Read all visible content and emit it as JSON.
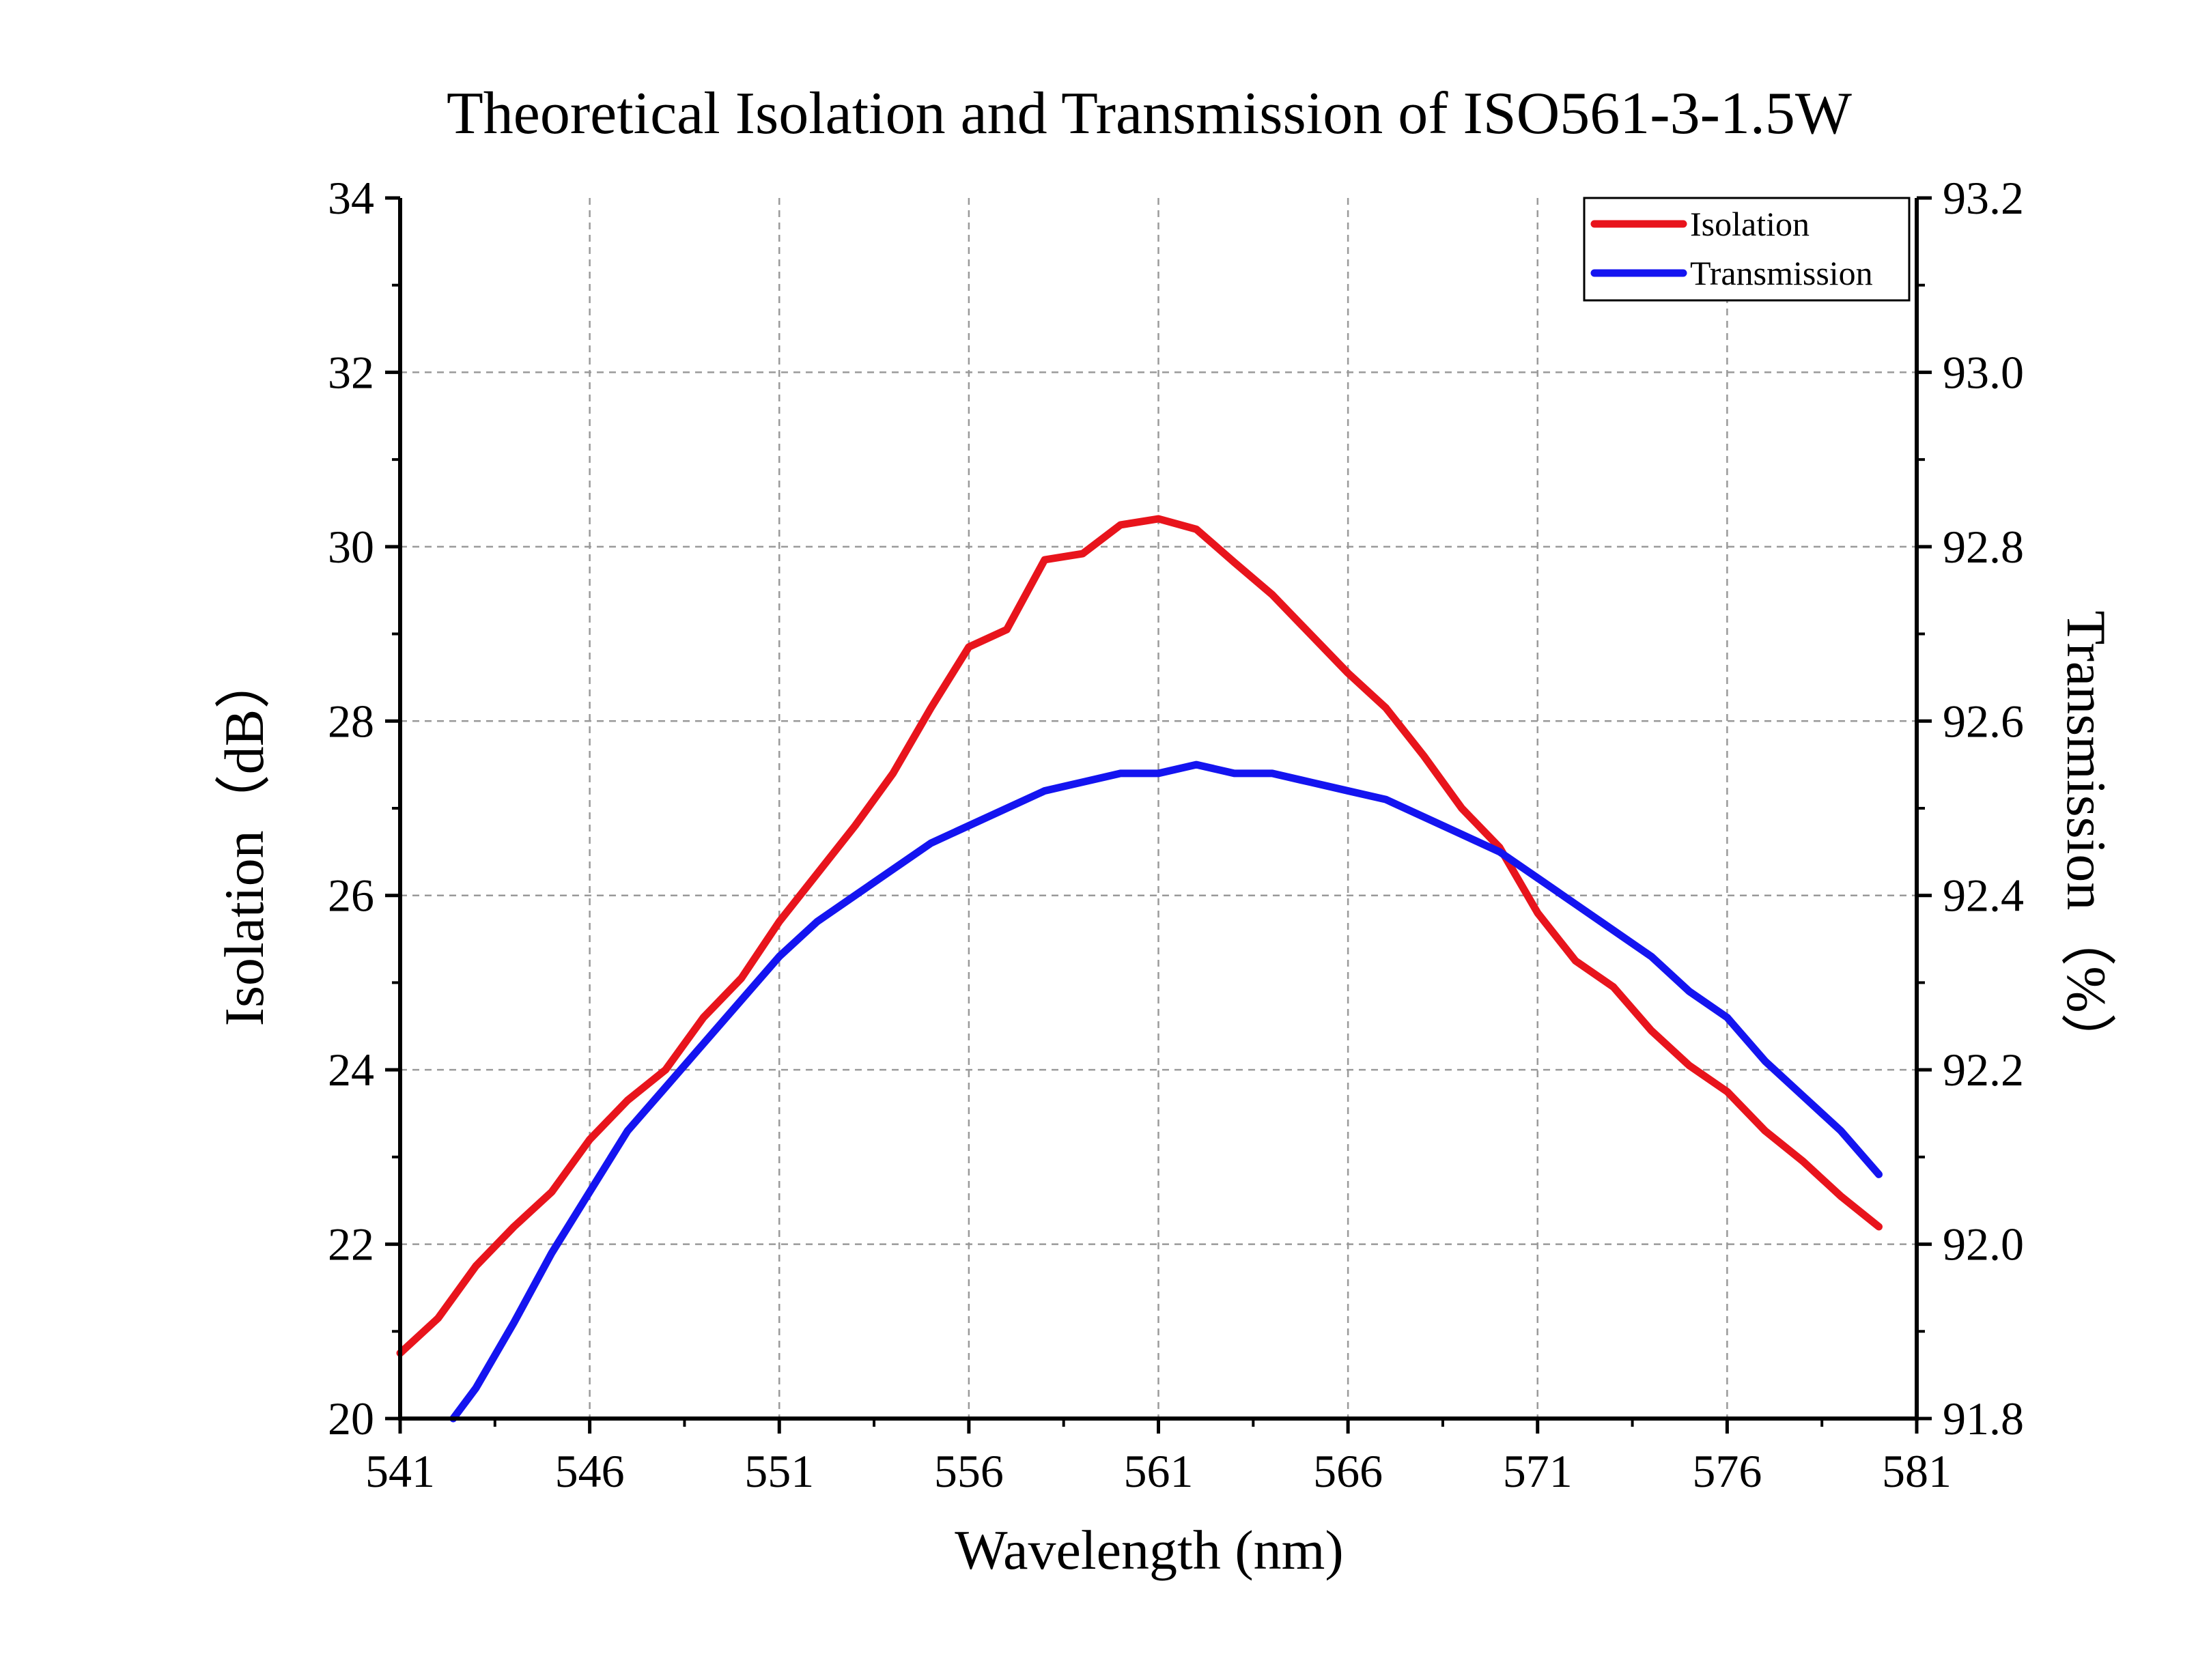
{
  "chart_data": {
    "type": "line",
    "title": "Theoretical Isolation and Transmission of ISO561-3-1.5W",
    "xlabel": "Wavelength (nm)",
    "ylabel_left": "Isolation（dB）",
    "ylabel_right": "Transmission（%）",
    "xlim": [
      541,
      581
    ],
    "ylim_left": [
      20,
      34
    ],
    "ylim_right": [
      91.8,
      93.2
    ],
    "xticks": [
      "541",
      "546",
      "551",
      "556",
      "561",
      "566",
      "571",
      "576",
      "581"
    ],
    "yticks_left": [
      "20",
      "22",
      "24",
      "26",
      "28",
      "30",
      "32",
      "34"
    ],
    "yticks_right": [
      "91.8",
      "92.0",
      "92.2",
      "92.4",
      "92.6",
      "92.8",
      "93.0",
      "93.2"
    ],
    "grid": true,
    "legend_position": "top-right",
    "series": [
      {
        "name": "Isolation",
        "axis": "left",
        "color": "#e8141c",
        "x": [
          541,
          542,
          543,
          544,
          545,
          546,
          547,
          548,
          549,
          550,
          551,
          552,
          553,
          554,
          555,
          556,
          557,
          558,
          559,
          560,
          561,
          562,
          563,
          564,
          565,
          566,
          567,
          568,
          569,
          570,
          571,
          572,
          573,
          574,
          575,
          576,
          577,
          578,
          579,
          580
        ],
        "y": [
          20.75,
          21.15,
          21.75,
          22.2,
          22.6,
          23.2,
          23.65,
          24.0,
          24.6,
          25.05,
          25.7,
          26.25,
          26.8,
          27.4,
          28.15,
          28.85,
          29.05,
          29.85,
          29.92,
          30.25,
          30.32,
          30.2,
          29.82,
          29.45,
          29.0,
          28.55,
          28.15,
          27.6,
          27.0,
          26.55,
          25.8,
          25.25,
          24.95,
          24.45,
          24.05,
          23.75,
          23.3,
          22.95,
          22.55,
          22.2
        ]
      },
      {
        "name": "Transmission",
        "axis": "right",
        "color": "#1414f0",
        "x": [
          542.4,
          543,
          544,
          545,
          546,
          547,
          548,
          549,
          550,
          551,
          552,
          553,
          554,
          555,
          556,
          557,
          558,
          559,
          560,
          561,
          562,
          563,
          564,
          565,
          566,
          567,
          568,
          569,
          570,
          571,
          572,
          573,
          574,
          575,
          576,
          577,
          578,
          579,
          580
        ],
        "y": [
          91.8,
          91.835,
          91.91,
          91.99,
          92.06,
          92.13,
          92.18,
          92.23,
          92.28,
          92.33,
          92.37,
          92.4,
          92.43,
          92.46,
          92.48,
          92.5,
          92.52,
          92.53,
          92.54,
          92.54,
          92.55,
          92.54,
          92.54,
          92.53,
          92.52,
          92.51,
          92.49,
          92.47,
          92.45,
          92.42,
          92.39,
          92.36,
          92.33,
          92.29,
          92.26,
          92.21,
          92.17,
          92.13,
          92.08
        ]
      }
    ]
  }
}
